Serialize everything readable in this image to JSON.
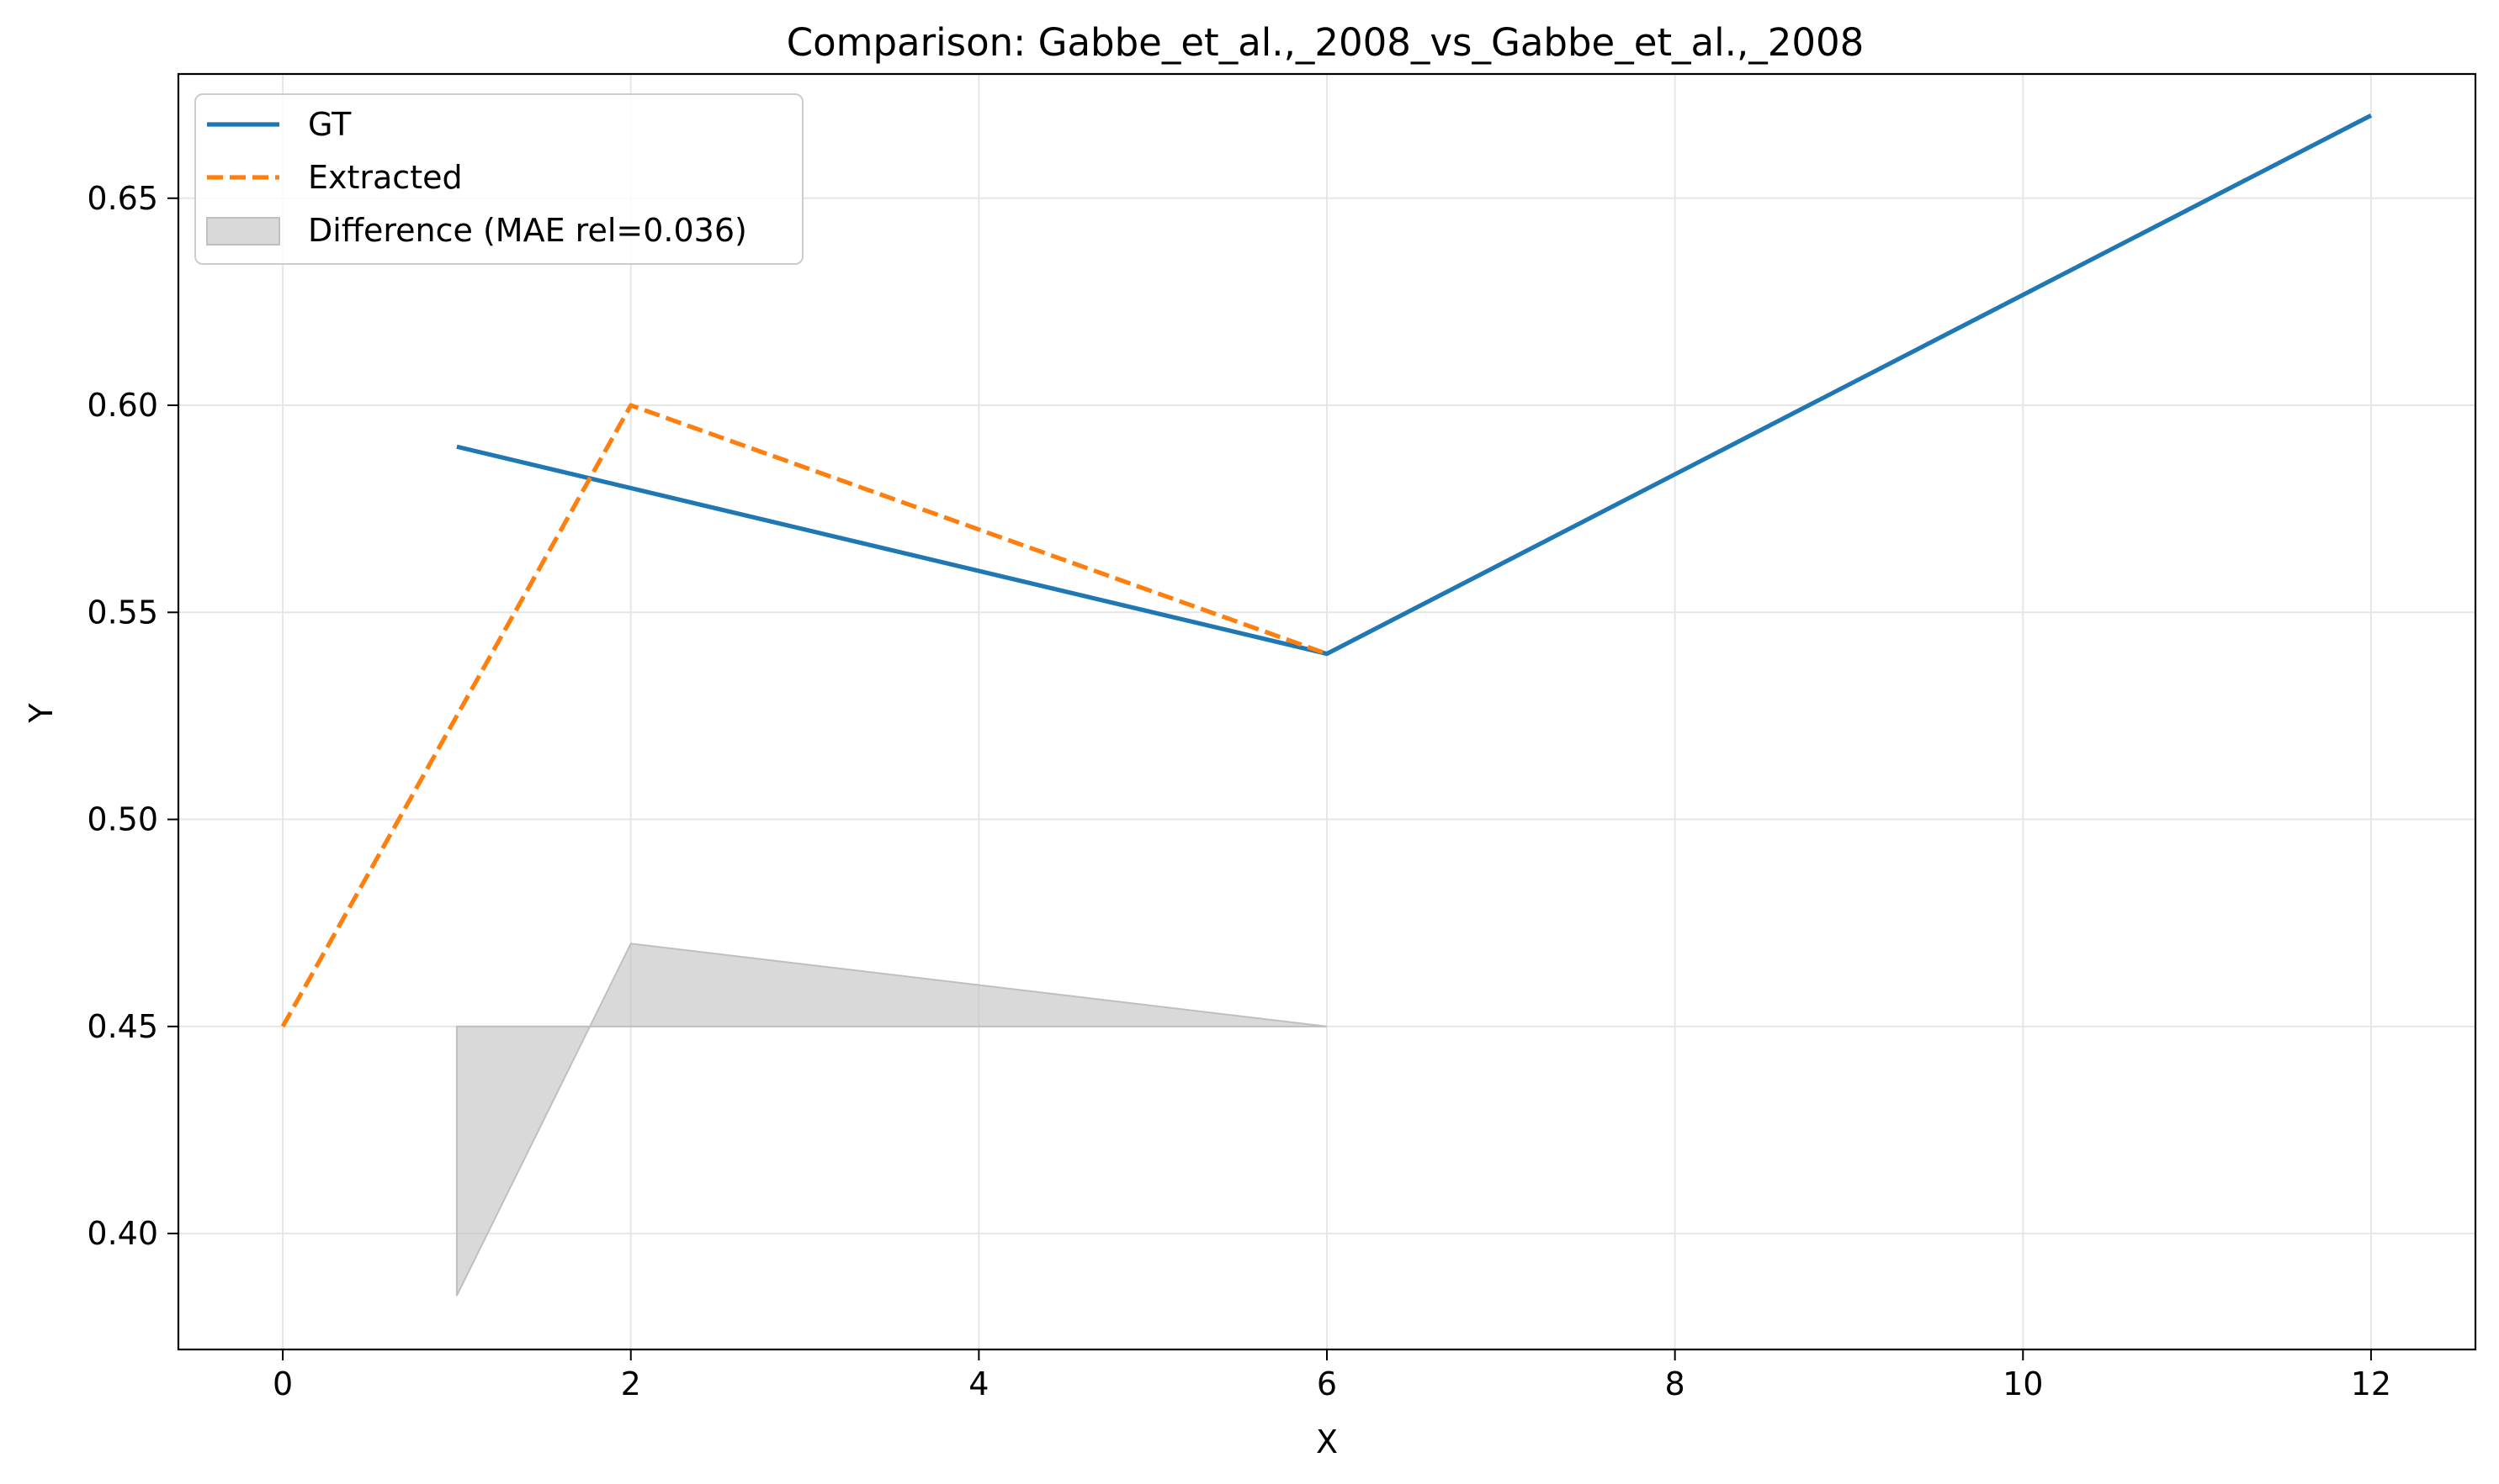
{
  "chart_data": {
    "type": "line",
    "title": "Comparison: Gabbe_et_al.,_2008_vs_Gabbe_et_al.,_2008",
    "xlabel": "X",
    "ylabel": "Y",
    "xlim": [
      -0.6,
      12.6
    ],
    "ylim": [
      0.372,
      0.68
    ],
    "xticks": [
      0,
      2,
      4,
      6,
      8,
      10,
      12
    ],
    "yticks": [
      0.4,
      0.45,
      0.5,
      0.55,
      0.6,
      0.65
    ],
    "xtick_labels": [
      "0",
      "2",
      "4",
      "6",
      "8",
      "10",
      "12"
    ],
    "ytick_labels": [
      "0.40",
      "0.45",
      "0.50",
      "0.55",
      "0.60",
      "0.65"
    ],
    "grid": true,
    "legend_position": "top-left",
    "series": [
      {
        "name": "GT",
        "color": "#1f77b4",
        "style": "solid",
        "x": [
          1,
          2,
          6,
          12
        ],
        "y": [
          0.59,
          0.58,
          0.54,
          0.67
        ]
      },
      {
        "name": "Extracted",
        "color": "#ff7f0e",
        "style": "dashed",
        "x": [
          0,
          2,
          6
        ],
        "y": [
          0.45,
          0.6,
          0.54
        ]
      }
    ],
    "difference": {
      "name": "Difference (MAE rel=0.036)",
      "color": "#bfbfbf",
      "x": [
        1,
        2,
        6
      ],
      "baseline": 0.45,
      "y": [
        0.385,
        0.47,
        0.45
      ]
    }
  }
}
